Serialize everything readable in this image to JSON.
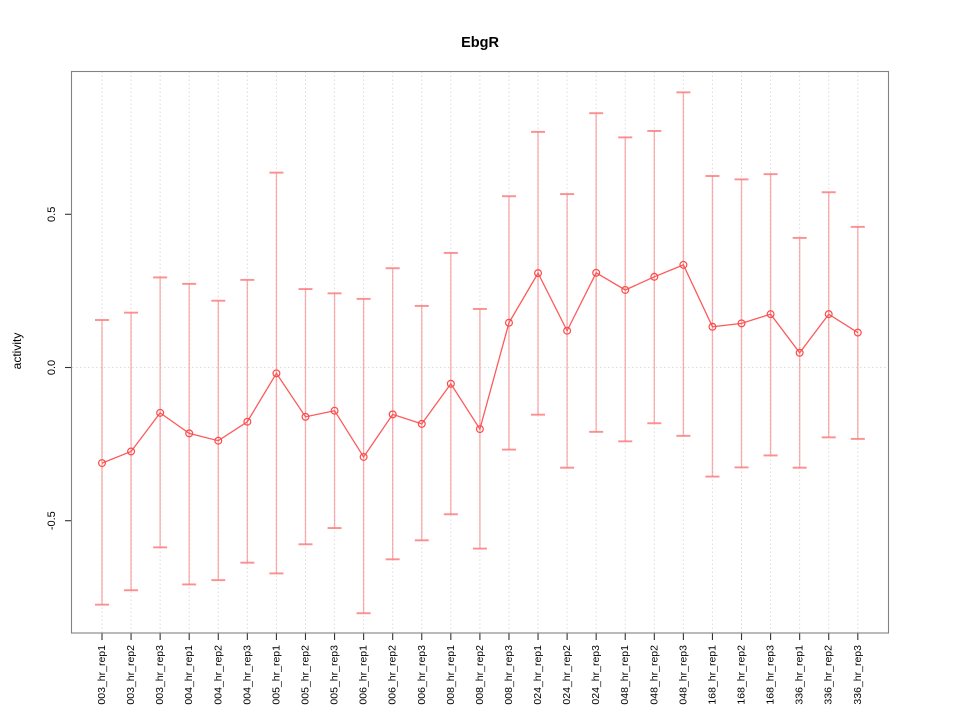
{
  "title": "EbgR",
  "chart_data": {
    "type": "line",
    "title": "EbgR",
    "xlabel": "",
    "ylabel": "activity",
    "legend_position": "none",
    "grid": "dotted vertical gridline at every category; dotted horizontal gridline at y=0",
    "ylim": [
      -0.87,
      0.96
    ],
    "yticks": [
      -0.5,
      0.0,
      0.5
    ],
    "ytick_labels": [
      "-0.5",
      "0.0",
      "0.5"
    ],
    "categories": [
      "003_hr_rep1",
      "003_hr_rep2",
      "003_hr_rep3",
      "004_hr_rep1",
      "004_hr_rep2",
      "004_hr_rep3",
      "005_hr_rep1",
      "005_hr_rep2",
      "005_hr_rep3",
      "006_hr_rep1",
      "006_hr_rep2",
      "006_hr_rep3",
      "008_hr_rep1",
      "008_hr_rep2",
      "008_hr_rep3",
      "024_hr_rep1",
      "024_hr_rep2",
      "024_hr_rep3",
      "048_hr_rep1",
      "048_hr_rep2",
      "048_hr_rep3",
      "168_hr_rep1",
      "168_hr_rep2",
      "168_hr_rep3",
      "336_hr_rep1",
      "336_hr_rep2",
      "336_hr_rep3"
    ],
    "series": [
      {
        "name": "mean activity",
        "values": [
          -0.312,
          -0.274,
          -0.148,
          -0.215,
          -0.239,
          -0.177,
          -0.019,
          -0.161,
          -0.141,
          -0.292,
          -0.153,
          -0.184,
          -0.053,
          -0.201,
          0.146,
          0.308,
          0.12,
          0.309,
          0.253,
          0.296,
          0.335,
          0.133,
          0.144,
          0.174,
          0.048,
          0.174,
          0.114
        ]
      },
      {
        "name": "error bar upper",
        "values": [
          0.155,
          0.179,
          0.294,
          0.273,
          0.218,
          0.286,
          0.636,
          0.256,
          0.242,
          0.224,
          0.324,
          0.201,
          0.374,
          0.191,
          0.559,
          0.769,
          0.566,
          0.83,
          0.751,
          0.772,
          0.898,
          0.625,
          0.614,
          0.631,
          0.423,
          0.572,
          0.459
        ]
      },
      {
        "name": "error bar lower",
        "values": [
          -0.774,
          -0.727,
          -0.587,
          -0.708,
          -0.694,
          -0.637,
          -0.672,
          -0.577,
          -0.524,
          -0.802,
          -0.626,
          -0.564,
          -0.479,
          -0.591,
          -0.268,
          -0.154,
          -0.327,
          -0.21,
          -0.241,
          -0.182,
          -0.223,
          -0.356,
          -0.326,
          -0.287,
          -0.327,
          -0.228,
          -0.233
        ]
      }
    ],
    "colors": {
      "line": "#fc5b5b",
      "point_stroke": "#fc4a4a",
      "error_bar": "#f87272",
      "error_cap": "#fb7b7b",
      "gridline": "#dcdcdc",
      "frame": "#828282",
      "tick": "#333333",
      "text": "#000000"
    },
    "point_style": "open circle"
  }
}
